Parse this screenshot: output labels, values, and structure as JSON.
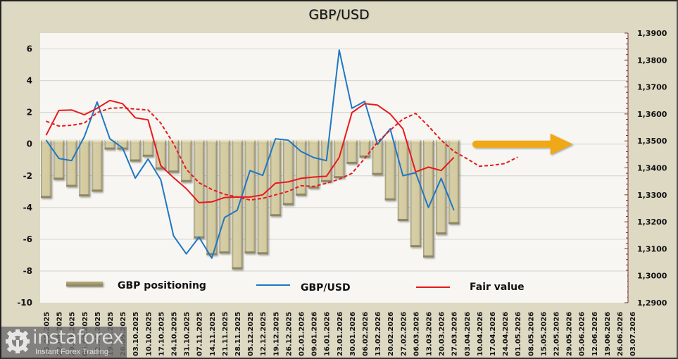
{
  "chart_data": {
    "type": "bar",
    "title": "GBP/USD",
    "xlabel": "",
    "ylabel": "",
    "y_left": {
      "min": -10,
      "max": 7,
      "ticks": [
        -10,
        -8,
        -6,
        -4,
        -2,
        0,
        2,
        4,
        6
      ],
      "tick_labels": [
        "-10",
        "-8",
        "-6",
        "-4",
        "-2",
        "0",
        "2",
        "4",
        "6"
      ]
    },
    "y_right": {
      "min": 1.29,
      "max": 1.39,
      "ticks": [
        1.29,
        1.3,
        1.31,
        1.32,
        1.33,
        1.34,
        1.35,
        1.36,
        1.37,
        1.38,
        1.39
      ],
      "tick_labels": [
        "1,2900",
        "1,3000",
        "1,3100",
        "1,3200",
        "1,3300",
        "1,3400",
        "1,3500",
        "1,3600",
        "1,3700",
        "1,3800",
        "1,3900"
      ]
    },
    "grid": true,
    "legend_position": "bottom",
    "categories": [
      "15.08.2025",
      "22.08.2025",
      "29.08.2025",
      "05.09.2025",
      "12.09.2025",
      "19.09.2025",
      "26.09.2025",
      "03.10.2025",
      "10.10.2025",
      "17.10.2025",
      "24.10.2025",
      "31.10.2025",
      "07.11.2025",
      "14.11.2025",
      "21.11.2025",
      "28.11.2025",
      "05.12.2025",
      "12.12.2025",
      "19.12.2025",
      "26.12.2025",
      "02.01.2026",
      "09.01.2026",
      "16.01.2026",
      "23.01.2026",
      "30.01.2026",
      "06.02.2026",
      "13.02.2026",
      "20.02.2026",
      "27.02.2026",
      "06.03.2026",
      "13.03.2026",
      "20.03.2026",
      "27.03.2026",
      "03.04.2026",
      "10.04.2026",
      "17.04.2026",
      "24.04.2026",
      "01.05.2026",
      "08.05.2026",
      "15.05.2026",
      "22.05.2026",
      "29.05.2026",
      "05.06.2026",
      "12.06.2026",
      "19.06.2026",
      "26.06.2026",
      "03.07.2026"
    ],
    "series": [
      {
        "name": "GBP positioning",
        "type": "bar",
        "axis": "left",
        "color": "#D3CAA0",
        "values": [
          -3.4,
          -2.25,
          -2.7,
          -3.3,
          -3.0,
          -0.35,
          -0.35,
          -1.1,
          -0.8,
          -1.6,
          -1.8,
          -2.4,
          -5.95,
          -7.0,
          -6.9,
          -7.9,
          -6.9,
          -6.95,
          -4.55,
          -3.85,
          -3.25,
          -2.8,
          -2.4,
          -2.15,
          -1.25,
          -0.85,
          -1.95,
          -3.55,
          -4.85,
          -6.5,
          -7.15,
          -5.7,
          -5.05
        ]
      },
      {
        "name": "GBP/USD",
        "type": "line",
        "axis": "right",
        "color": "#1F77C4",
        "values": [
          1.3503,
          1.3435,
          1.3427,
          1.3516,
          1.3644,
          1.3508,
          1.3474,
          1.3362,
          1.3433,
          1.3356,
          1.3148,
          1.3081,
          1.3143,
          1.3065,
          1.3216,
          1.3243,
          1.339,
          1.3372,
          1.3508,
          1.3503,
          1.3461,
          1.3438,
          1.3427,
          1.3837,
          1.3621,
          1.3647,
          1.3487,
          1.3545,
          1.3371,
          1.3382,
          1.3253,
          1.3361,
          1.3243
        ]
      },
      {
        "name": "Fair value",
        "type": "line",
        "axis": "right",
        "color": "#E8191C",
        "values": [
          1.3521,
          1.3613,
          1.3615,
          1.3597,
          1.3621,
          1.365,
          1.3638,
          1.3586,
          1.3578,
          1.3408,
          1.3364,
          1.3323,
          1.3271,
          1.3274,
          1.329,
          1.3292,
          1.3292,
          1.33,
          1.3343,
          1.3348,
          1.3361,
          1.3366,
          1.3369,
          1.3439,
          1.3605,
          1.3638,
          1.3633,
          1.36,
          1.3545,
          1.3385,
          1.3403,
          1.339,
          1.3439
        ]
      },
      {
        "name": "Fair value (moving average)",
        "type": "line",
        "style": "dashed",
        "axis": "right",
        "color": "#E8191C",
        "in_legend": false,
        "values": [
          1.3573,
          1.3555,
          1.3558,
          1.3566,
          1.3605,
          1.3621,
          1.3623,
          1.3618,
          1.3615,
          1.3566,
          1.349,
          1.3395,
          1.3345,
          1.332,
          1.3302,
          1.3292,
          1.3281,
          1.3287,
          1.33,
          1.3313,
          1.3334,
          1.3331,
          1.3343,
          1.3358,
          1.338,
          1.3435,
          1.3495,
          1.354,
          1.3581,
          1.3602,
          1.3555,
          1.3503,
          1.3461,
          1.3435,
          1.3406,
          1.341,
          1.3416,
          1.344
        ]
      }
    ],
    "annotations": [
      {
        "type": "arrow",
        "direction": "right",
        "color": "#F0A818",
        "from_category": "10.04.2026",
        "to_category": "29.05.2026",
        "level": 1.3488
      }
    ]
  },
  "legend": {
    "positioning_label": "GBP positioning",
    "gbpusd_label": "GBP/USD",
    "fair_value_label": "Fair value"
  },
  "watermark": {
    "brand": "instaforex",
    "tagline": "Instant Forex Trading"
  }
}
